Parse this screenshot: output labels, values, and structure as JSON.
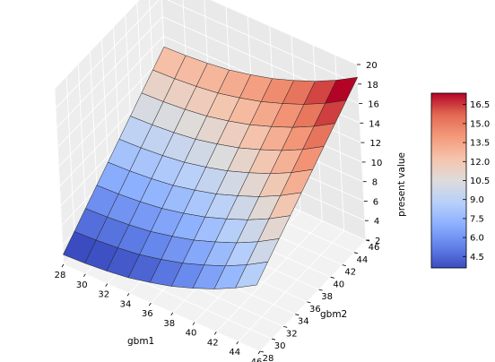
{
  "chart_data": {
    "type": "surface3d",
    "title": "",
    "xlabel": "gbm1",
    "ylabel": "gbm2",
    "zlabel": "present value",
    "x_ticks": [
      28,
      30,
      32,
      34,
      36,
      38,
      40,
      42,
      44,
      46
    ],
    "y_ticks": [
      28,
      30,
      32,
      34,
      36,
      38,
      40,
      42,
      44,
      46
    ],
    "z_ticks": [
      2,
      4,
      6,
      8,
      10,
      12,
      14,
      16,
      18,
      20
    ],
    "xlim": [
      28,
      46
    ],
    "ylim": [
      28,
      46
    ],
    "zlim": [
      2,
      20
    ],
    "grid": true,
    "colormap": "coolwarm",
    "colorbar": {
      "ticks": [
        "4.5",
        "6.0",
        "7.5",
        "9.0",
        "10.5",
        "12.0",
        "13.5",
        "15.0",
        "16.5"
      ],
      "range": [
        3.6,
        17.4
      ],
      "colors": [
        "#3b4cc0",
        "#6282ea",
        "#8db0fe",
        "#b8d0f9",
        "#dddcdc",
        "#f5c4ac",
        "#f49a7b",
        "#e36a53",
        "#b40426"
      ]
    },
    "surface": {
      "x": [
        28,
        30,
        32,
        34,
        36,
        38,
        40,
        42,
        44,
        46
      ],
      "y": [
        28,
        30,
        32,
        34,
        36,
        38,
        40,
        42,
        44,
        46
      ],
      "z": [
        [
          3.0,
          3.1,
          3.3,
          3.6,
          4.1,
          4.7,
          5.5,
          6.4,
          7.5,
          8.8
        ],
        [
          4.1,
          4.2,
          4.4,
          4.7,
          5.2,
          5.8,
          6.6,
          7.5,
          8.6,
          9.9
        ],
        [
          5.2,
          5.3,
          5.5,
          5.8,
          6.3,
          6.9,
          7.7,
          8.6,
          9.7,
          11.0
        ],
        [
          6.3,
          6.4,
          6.6,
          6.9,
          7.4,
          8.0,
          8.8,
          9.7,
          10.8,
          12.1
        ],
        [
          7.4,
          7.5,
          7.7,
          8.0,
          8.5,
          9.1,
          9.9,
          10.8,
          11.9,
          13.2
        ],
        [
          8.5,
          8.6,
          8.8,
          9.1,
          9.6,
          10.2,
          11.0,
          11.9,
          13.0,
          14.3
        ],
        [
          9.6,
          9.7,
          9.9,
          10.2,
          10.7,
          11.3,
          12.1,
          13.0,
          14.1,
          15.4
        ],
        [
          10.7,
          10.8,
          11.0,
          11.3,
          11.8,
          12.4,
          13.2,
          14.1,
          15.2,
          16.5
        ],
        [
          11.8,
          11.9,
          12.1,
          12.4,
          12.9,
          13.5,
          14.3,
          15.2,
          16.3,
          17.6
        ],
        [
          12.9,
          13.0,
          13.2,
          13.5,
          14.0,
          14.6,
          15.4,
          16.3,
          17.4,
          18.7
        ]
      ]
    }
  }
}
